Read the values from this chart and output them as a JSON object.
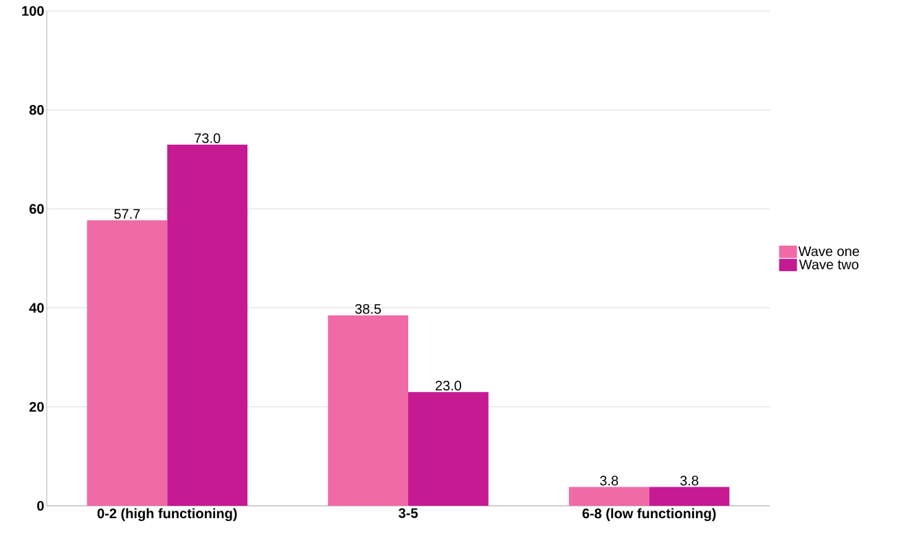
{
  "chart_data": {
    "type": "bar",
    "categories": [
      "0-2 (high functioning)",
      "3-5",
      "6-8 (low functioning)"
    ],
    "series": [
      {
        "name": "Wave one",
        "color": "#f06aa6",
        "values": [
          57.7,
          38.5,
          3.8
        ],
        "value_labels": [
          "57.7",
          "38.5",
          "3.8"
        ]
      },
      {
        "name": "Wave two",
        "color": "#c51a92",
        "values": [
          73.0,
          23.0,
          3.8
        ],
        "value_labels": [
          "73.0",
          "23.0",
          "3.8"
        ]
      }
    ],
    "ylim": [
      0,
      100
    ],
    "yticks": [
      0,
      20,
      40,
      60,
      80,
      100
    ],
    "grid": "y",
    "legend": "right"
  }
}
